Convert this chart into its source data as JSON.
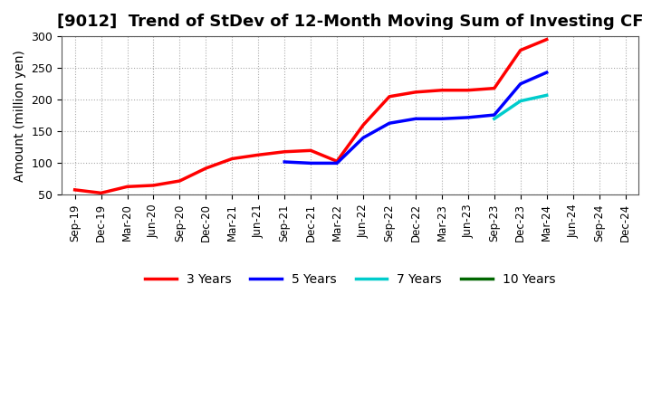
{
  "title": "[9012]  Trend of StDev of 12-Month Moving Sum of Investing CF",
  "ylabel": "Amount (million yen)",
  "ylim": [
    50,
    300
  ],
  "yticks": [
    50,
    100,
    150,
    200,
    250,
    300
  ],
  "background_color": "#ffffff",
  "grid_color": "#aaaaaa",
  "title_fontsize": 13,
  "axis_fontsize": 10,
  "legend_fontsize": 10,
  "series": {
    "3years": {
      "color": "#ff0000",
      "label": "3 Years",
      "x": [
        "Sep-19",
        "Dec-19",
        "Mar-20",
        "Jun-20",
        "Sep-20",
        "Dec-20",
        "Mar-21",
        "Jun-21",
        "Sep-21",
        "Dec-21",
        "Mar-22",
        "Jun-22",
        "Sep-22",
        "Dec-22",
        "Mar-23",
        "Jun-23",
        "Sep-23",
        "Dec-23",
        "Mar-24"
      ],
      "y": [
        58,
        53,
        63,
        65,
        72,
        92,
        107,
        113,
        118,
        120,
        103,
        160,
        205,
        212,
        215,
        215,
        218,
        278,
        295
      ]
    },
    "5years": {
      "color": "#0000ff",
      "label": "5 Years",
      "x": [
        "Sep-21",
        "Dec-21",
        "Mar-22",
        "Jun-22",
        "Sep-22",
        "Dec-22",
        "Mar-23",
        "Jun-23",
        "Sep-23",
        "Dec-23",
        "Mar-24"
      ],
      "y": [
        102,
        100,
        100,
        140,
        163,
        170,
        170,
        172,
        176,
        225,
        243
      ]
    },
    "7years": {
      "color": "#00cccc",
      "label": "7 Years",
      "x": [
        "Sep-23",
        "Dec-23",
        "Mar-24"
      ],
      "y": [
        170,
        198,
        207
      ]
    },
    "10years": {
      "color": "#006600",
      "label": "10 Years",
      "x": [],
      "y": []
    }
  },
  "xtick_labels": [
    "Sep-19",
    "Dec-19",
    "Mar-20",
    "Jun-20",
    "Sep-20",
    "Dec-20",
    "Mar-21",
    "Jun-21",
    "Sep-21",
    "Dec-21",
    "Mar-22",
    "Jun-22",
    "Sep-22",
    "Dec-22",
    "Mar-23",
    "Jun-23",
    "Sep-23",
    "Dec-23",
    "Mar-24",
    "Jun-24",
    "Sep-24",
    "Dec-24"
  ]
}
